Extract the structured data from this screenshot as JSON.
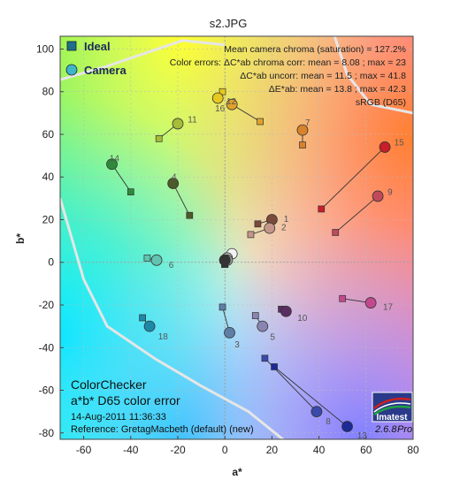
{
  "window_title": "s2.JPG",
  "chart_data": {
    "type": "scatter",
    "title": "s2.JPG",
    "xlabel": "a*",
    "ylabel": "b*",
    "xlim": [
      -70,
      80
    ],
    "ylim": [
      -83,
      106
    ],
    "x_ticks": [
      -60,
      -40,
      -20,
      0,
      20,
      40,
      60,
      80
    ],
    "y_ticks": [
      -80,
      -60,
      -40,
      -20,
      0,
      20,
      40,
      60,
      80,
      100
    ],
    "grid": true,
    "legend": {
      "position": "top-left",
      "entries": [
        {
          "name": "Ideal",
          "marker": "square",
          "color": "#1f6f88"
        },
        {
          "name": "Camera",
          "marker": "circle",
          "color": "#3fb6c8"
        }
      ]
    },
    "stats": [
      "Mean camera chroma (saturation) = 127.2%",
      "Color errors: ΔC*ab chroma corr:  mean = 8.08 ;  max = 23",
      "ΔC*ab uncorr:  mean = 11.5 ;  max = 41.8",
      "ΔE*ab:  mean = 13.8 ;  max = 42.3",
      "sRGB (D65)"
    ],
    "patches": [
      {
        "id": "1",
        "ideal": [
          14,
          18
        ],
        "camera": [
          20,
          20
        ],
        "color": "#7a4a3a"
      },
      {
        "id": "2",
        "ideal": [
          11,
          13
        ],
        "camera": [
          19,
          16
        ],
        "color": "#c4968a"
      },
      {
        "id": "3",
        "ideal": [
          -1,
          -21
        ],
        "camera": [
          2,
          -33
        ],
        "color": "#5f7ea6"
      },
      {
        "id": "4",
        "ideal": [
          -15,
          22
        ],
        "camera": [
          -22,
          37
        ],
        "color": "#4d5a2a"
      },
      {
        "id": "5",
        "ideal": [
          13,
          -25
        ],
        "camera": [
          16,
          -30
        ],
        "color": "#8a84b0"
      },
      {
        "id": "6",
        "ideal": [
          -33,
          2
        ],
        "camera": [
          -29,
          1
        ],
        "color": "#62c3b0"
      },
      {
        "id": "7",
        "ideal": [
          33,
          55
        ],
        "camera": [
          33,
          62
        ],
        "color": "#d8822a"
      },
      {
        "id": "8",
        "ideal": [
          17,
          -45
        ],
        "camera": [
          39,
          -70
        ],
        "color": "#3a4aa8"
      },
      {
        "id": "9",
        "ideal": [
          47,
          14
        ],
        "camera": [
          65,
          31
        ],
        "color": "#c04a5a"
      },
      {
        "id": "10",
        "ideal": [
          24,
          -22
        ],
        "camera": [
          26,
          -23
        ],
        "color": "#5a2e62"
      },
      {
        "id": "11",
        "ideal": [
          -28,
          58
        ],
        "camera": [
          -20,
          65
        ],
        "color": "#a6bc3a"
      },
      {
        "id": "12",
        "ideal": [
          15,
          66
        ],
        "camera": [
          3,
          74
        ],
        "color": "#e0a22a"
      },
      {
        "id": "13",
        "ideal": [
          21,
          -49
        ],
        "camera": [
          52,
          -77
        ],
        "color": "#1e2a96"
      },
      {
        "id": "14",
        "ideal": [
          -40,
          33
        ],
        "camera": [
          -48,
          46
        ],
        "color": "#2e8a3a"
      },
      {
        "id": "15",
        "ideal": [
          41,
          25
        ],
        "camera": [
          68,
          54
        ],
        "color": "#c81e2a"
      },
      {
        "id": "16",
        "ideal": [
          -1,
          80
        ],
        "camera": [
          -3,
          77
        ],
        "color": "#e6c81e"
      },
      {
        "id": "17",
        "ideal": [
          50,
          -17
        ],
        "camera": [
          62,
          -19
        ],
        "color": "#c4488e"
      },
      {
        "id": "18",
        "ideal": [
          -35,
          -26
        ],
        "camera": [
          -32,
          -30
        ],
        "color": "#1e88a8"
      },
      {
        "id": "19",
        "ideal": [
          0,
          0
        ],
        "camera": [
          3,
          4
        ],
        "color": "#f2f2f2"
      },
      {
        "id": "20",
        "ideal": [
          0,
          -1
        ],
        "camera": [
          1,
          2
        ],
        "color": "#c8c8c8"
      },
      {
        "id": "21",
        "ideal": [
          0,
          -1
        ],
        "camera": [
          1,
          1
        ],
        "color": "#a0a0a0"
      },
      {
        "id": "22",
        "ideal": [
          0,
          -1
        ],
        "camera": [
          0,
          1
        ],
        "color": "#7a7a7a"
      },
      {
        "id": "23",
        "ideal": [
          0,
          -1
        ],
        "camera": [
          0,
          1
        ],
        "color": "#555555"
      },
      {
        "id": "24",
        "ideal": [
          0,
          -1
        ],
        "camera": [
          0,
          1
        ],
        "color": "#343434"
      }
    ]
  },
  "annotation": {
    "title": "ColorChecker",
    "subtitle": "a*b* D65 color error",
    "date": "14-Aug-2011 11:36:33",
    "reference": "Reference:  GretagMacbeth (default) (new)"
  },
  "logo": {
    "text": "Imatest"
  },
  "version": {
    "number": "2.6.8",
    "edition": "Pro"
  }
}
